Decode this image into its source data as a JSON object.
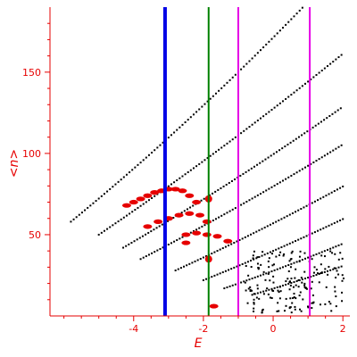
{
  "chart_data": {
    "type": "scatter",
    "xlabel": "E",
    "ylabel": "<n>",
    "xlim": [
      -6.4,
      2.2
    ],
    "ylim": [
      0,
      190
    ],
    "x_ticks": [
      -4,
      -2,
      0,
      2
    ],
    "x_tick_labels": [
      "-4",
      "-2",
      "0",
      "2"
    ],
    "y_ticks": [
      50,
      100,
      150
    ],
    "y_tick_labels": [
      "50",
      "100",
      "150"
    ],
    "grid": false,
    "colors": {
      "axis": "#e60000",
      "series_black": "#000000",
      "series_red": "#e60000",
      "line_blue": "#0000e6",
      "line_green": "#008000",
      "line_magenta": "#e600e6"
    },
    "vertical_lines": [
      {
        "x": -3.1,
        "color": "#0000e6",
        "width": "thick"
      },
      {
        "x": -1.85,
        "color": "#008000",
        "width": "normal"
      },
      {
        "x": -1.0,
        "color": "#e600e6",
        "width": "normal"
      },
      {
        "x": 1.05,
        "color": "#e600e6",
        "width": "normal"
      }
    ],
    "bands": [
      {
        "x0": -5.8,
        "x1": 2.0,
        "a": 1.25,
        "b": 0.3,
        "c": 0.0
      },
      {
        "x0": -5.0,
        "x1": 2.0,
        "a": 0.85,
        "b": 0.3,
        "c": 0.0
      },
      {
        "x0": -4.3,
        "x1": 2.0,
        "a": 0.6,
        "b": 0.3,
        "c": 0.0
      },
      {
        "x0": -3.8,
        "x1": 2.0,
        "a": 0.48,
        "b": 0.3,
        "c": 0.0
      },
      {
        "x0": -2.8,
        "x1": 2.0,
        "a": 0.4,
        "b": 0.3,
        "c": 0.0
      },
      {
        "x0": -2.0,
        "x1": 2.0,
        "a": 0.33,
        "b": 0.3,
        "c": 0.0
      },
      {
        "x0": -1.4,
        "x1": 2.0,
        "a": 0.3,
        "b": 0.3,
        "c": 0.0
      },
      {
        "x0": -0.6,
        "x1": 2.0,
        "a": 0.27,
        "b": 0.3,
        "c": 0.0
      }
    ],
    "red_clusters": [
      {
        "x": -4.2,
        "y": 68
      },
      {
        "x": -4.0,
        "y": 70
      },
      {
        "x": -3.8,
        "y": 72
      },
      {
        "x": -3.6,
        "y": 74
      },
      {
        "x": -3.4,
        "y": 76
      },
      {
        "x": -3.2,
        "y": 77
      },
      {
        "x": -3.0,
        "y": 78
      },
      {
        "x": -2.8,
        "y": 78
      },
      {
        "x": -2.6,
        "y": 77
      },
      {
        "x": -2.4,
        "y": 74
      },
      {
        "x": -2.2,
        "y": 70
      },
      {
        "x": -3.6,
        "y": 55
      },
      {
        "x": -3.3,
        "y": 58
      },
      {
        "x": -3.0,
        "y": 60
      },
      {
        "x": -2.7,
        "y": 62
      },
      {
        "x": -2.4,
        "y": 63
      },
      {
        "x": -2.1,
        "y": 62
      },
      {
        "x": -1.9,
        "y": 58
      },
      {
        "x": -2.5,
        "y": 50
      },
      {
        "x": -2.2,
        "y": 51
      },
      {
        "x": -1.9,
        "y": 50
      },
      {
        "x": -1.6,
        "y": 49
      },
      {
        "x": -1.3,
        "y": 46
      },
      {
        "x": -2.5,
        "y": 45
      },
      {
        "x": -1.7,
        "y": 6
      }
    ],
    "red_big_points": [
      {
        "x": -1.85,
        "y": 72
      },
      {
        "x": -1.85,
        "y": 35
      }
    ]
  }
}
